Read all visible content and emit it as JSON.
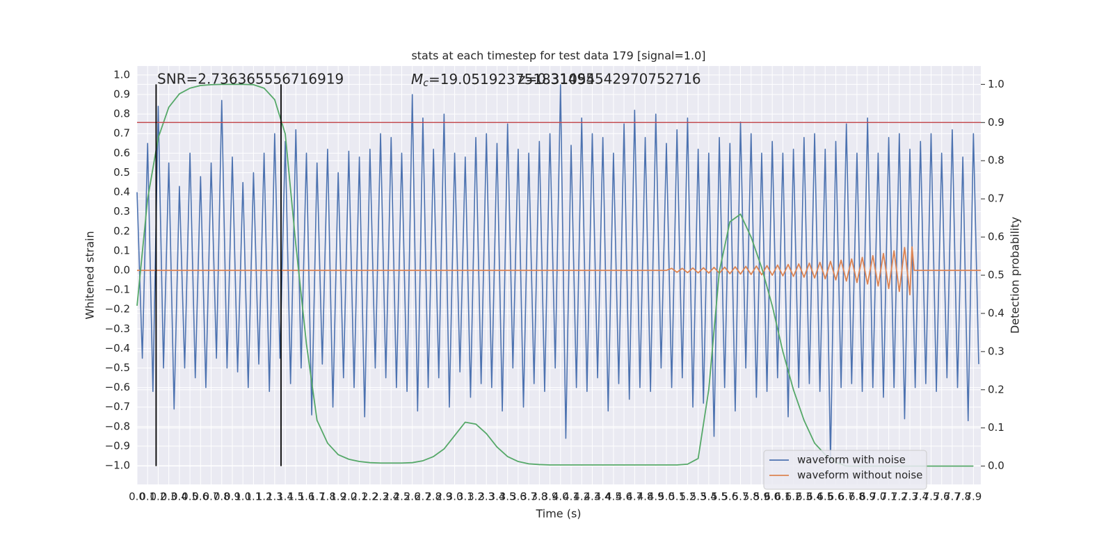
{
  "chart_data": {
    "type": "line",
    "title": "stats at each timestep for test data 179 [signal=1.0]",
    "xlabel": "Time (s)",
    "ylabel": "Whitened strain",
    "y2label": "Detection probability",
    "xlim": [
      0,
      7.97
    ],
    "ylim": [
      -1.096,
      1.046
    ],
    "y2lim": [
      -0.048,
      1.048
    ],
    "xticks": [
      {
        "value": 0,
        "label": "0.0"
      },
      0.1,
      0.2,
      0.3,
      0.4,
      0.5,
      0.6,
      0.7,
      0.8,
      0.9,
      {
        "value": 1,
        "label": "1.0"
      },
      1.1,
      1.2,
      1.3,
      1.4,
      1.5,
      1.6,
      1.7,
      1.8,
      1.9,
      {
        "value": 2,
        "label": "2.0"
      },
      2.1,
      2.2,
      2.3,
      2.4,
      2.5,
      2.6,
      2.7,
      2.8,
      2.9,
      {
        "value": 3,
        "label": "3.0"
      },
      3.1,
      3.2,
      3.3,
      3.4,
      3.5,
      3.6,
      3.7,
      3.8,
      3.9,
      {
        "value": 4,
        "label": "4.0"
      },
      4.1,
      4.2,
      4.3,
      4.4,
      4.5,
      4.6,
      4.7,
      4.8,
      4.9,
      {
        "value": 5,
        "label": "5.0"
      },
      5.1,
      5.2,
      5.3,
      5.4,
      5.5,
      5.6,
      5.7,
      5.8,
      5.9,
      {
        "value": 6,
        "label": "6.0"
      },
      6.1,
      6.2,
      6.3,
      6.4,
      6.5,
      6.6,
      6.7,
      6.8,
      6.9,
      {
        "value": 7,
        "label": "7.0"
      },
      7.1,
      7.2,
      7.3,
      7.4,
      7.5,
      7.6,
      7.7,
      7.8,
      7.9
    ],
    "yticks": [
      {
        "value": -1,
        "label": "−1.0"
      },
      {
        "value": -0.9,
        "label": "−0.9"
      },
      {
        "value": -0.8,
        "label": "−0.8"
      },
      {
        "value": -0.7,
        "label": "−0.7"
      },
      {
        "value": -0.6,
        "label": "−0.6"
      },
      {
        "value": -0.5,
        "label": "−0.5"
      },
      {
        "value": -0.4,
        "label": "−0.4"
      },
      {
        "value": -0.3,
        "label": "−0.3"
      },
      {
        "value": -0.2,
        "label": "−0.2"
      },
      {
        "value": -0.1,
        "label": "−0.1"
      },
      {
        "value": 0,
        "label": "0.0"
      },
      0.1,
      0.2,
      0.3,
      0.4,
      0.5,
      0.6,
      0.7,
      0.8,
      0.9,
      {
        "value": 1,
        "label": "1.0"
      }
    ],
    "y2ticks": [
      {
        "value": 0,
        "label": "0.0"
      },
      0.1,
      0.2,
      0.3,
      0.4,
      0.5,
      0.6,
      0.7,
      0.8,
      0.9,
      {
        "value": 1,
        "label": "1.0"
      }
    ],
    "grid": true,
    "legend": "lower right",
    "series": [
      {
        "name": "waveform with noise",
        "color": "#4c72b0",
        "x": [
          0,
          0.05,
          0.1,
          0.15,
          0.2,
          0.25,
          0.3,
          0.35,
          0.4,
          0.45,
          0.5,
          0.55,
          0.6,
          0.65,
          0.7,
          0.75,
          0.8,
          0.85,
          0.9,
          0.95,
          1,
          1.05,
          1.1,
          1.15,
          1.2,
          1.25,
          1.3,
          1.35,
          1.4,
          1.45,
          1.5,
          1.55,
          1.6,
          1.65,
          1.7,
          1.75,
          1.8,
          1.85,
          1.9,
          1.95,
          2,
          2.05,
          2.1,
          2.15,
          2.2,
          2.25,
          2.3,
          2.35,
          2.4,
          2.45,
          2.5,
          2.55,
          2.6,
          2.65,
          2.7,
          2.75,
          2.8,
          2.85,
          2.9,
          2.95,
          3,
          3.05,
          3.1,
          3.15,
          3.2,
          3.25,
          3.3,
          3.35,
          3.4,
          3.45,
          3.5,
          3.55,
          3.6,
          3.65,
          3.7,
          3.75,
          3.8,
          3.85,
          3.9,
          3.95,
          4,
          4.05,
          4.1,
          4.15,
          4.2,
          4.25,
          4.3,
          4.35,
          4.4,
          4.45,
          4.5,
          4.55,
          4.6,
          4.65,
          4.7,
          4.75,
          4.8,
          4.85,
          4.9,
          4.95,
          5,
          5.05,
          5.1,
          5.15,
          5.2,
          5.25,
          5.3,
          5.35,
          5.4,
          5.45,
          5.5,
          5.55,
          5.6,
          5.65,
          5.7,
          5.75,
          5.8,
          5.85,
          5.9,
          5.95,
          6,
          6.05,
          6.1,
          6.15,
          6.2,
          6.25,
          6.3,
          6.35,
          6.4,
          6.45,
          6.5,
          6.55,
          6.6,
          6.65,
          6.7,
          6.75,
          6.8,
          6.85,
          6.9,
          6.95,
          7,
          7.05,
          7.1,
          7.15,
          7.2,
          7.25,
          7.3,
          7.35,
          7.4,
          7.45,
          7.5,
          7.55,
          7.6,
          7.65,
          7.7,
          7.75,
          7.8,
          7.85,
          7.9,
          7.95
        ],
        "values": [
          0.4,
          -0.45,
          0.65,
          -0.62,
          0.84,
          -0.5,
          0.55,
          -0.71,
          0.43,
          -0.5,
          0.6,
          -0.55,
          0.48,
          -0.6,
          0.55,
          -0.45,
          0.87,
          -0.5,
          0.58,
          -0.52,
          0.45,
          -0.6,
          0.5,
          -0.48,
          0.6,
          -0.62,
          0.7,
          -0.45,
          0.66,
          -0.58,
          0.72,
          -0.5,
          0.6,
          -0.74,
          0.55,
          -0.48,
          0.62,
          -0.7,
          0.5,
          -0.55,
          0.61,
          -0.6,
          0.58,
          -0.75,
          0.62,
          -0.5,
          0.7,
          -0.55,
          0.68,
          -0.6,
          0.6,
          -0.62,
          0.9,
          -0.72,
          0.78,
          -0.6,
          0.62,
          -0.55,
          0.8,
          -0.7,
          0.6,
          -0.52,
          0.58,
          -0.65,
          0.68,
          -0.58,
          0.7,
          -0.6,
          0.65,
          -0.72,
          0.75,
          -0.5,
          0.62,
          -0.7,
          0.6,
          -0.58,
          0.66,
          -0.62,
          0.7,
          -0.5,
          0.95,
          -0.86,
          0.64,
          -0.6,
          0.78,
          -0.62,
          0.7,
          -0.55,
          0.68,
          -0.72,
          0.6,
          -0.58,
          0.75,
          -0.66,
          0.82,
          -0.6,
          0.68,
          -0.62,
          0.8,
          -0.5,
          0.65,
          -0.6,
          0.72,
          -0.55,
          0.78,
          -0.7,
          0.62,
          -0.68,
          0.6,
          -0.85,
          0.68,
          -0.6,
          0.65,
          -0.72,
          0.76,
          -0.5,
          0.7,
          -0.65,
          0.6,
          -0.62,
          0.66,
          -0.55,
          0.6,
          -0.75,
          0.62,
          -0.6,
          0.68,
          -0.58,
          0.7,
          -0.62,
          0.62,
          -0.98,
          0.66,
          -0.6,
          0.75,
          -0.58,
          0.6,
          -0.62,
          0.78,
          -0.6,
          0.6,
          -0.65,
          0.68,
          -0.6,
          0.7,
          -0.76,
          0.62,
          -0.6,
          0.66,
          -0.58,
          0.7,
          -0.62,
          0.6,
          -0.55,
          0.72,
          -0.6,
          0.58,
          -0.77,
          0.7,
          -0.48
        ]
      },
      {
        "name": "waveform without noise",
        "color": "#dd8452",
        "x": [
          0,
          5,
          5.05,
          5.1,
          5.15,
          5.2,
          5.25,
          5.3,
          5.35,
          5.4,
          5.45,
          5.5,
          5.55,
          5.6,
          5.65,
          5.7,
          5.75,
          5.8,
          5.85,
          5.9,
          5.95,
          6,
          6.05,
          6.1,
          6.15,
          6.2,
          6.25,
          6.3,
          6.35,
          6.4,
          6.45,
          6.5,
          6.55,
          6.6,
          6.65,
          6.7,
          6.75,
          6.8,
          6.85,
          6.9,
          6.95,
          7,
          7.05,
          7.1,
          7.15,
          7.2,
          7.25,
          7.3,
          7.32,
          7.34,
          7.97
        ],
        "values": [
          0,
          0,
          0.01,
          -0.01,
          0.01,
          -0.012,
          0.012,
          -0.013,
          0.013,
          -0.014,
          0.015,
          -0.015,
          0.016,
          -0.017,
          0.018,
          -0.019,
          0.02,
          -0.021,
          0.022,
          -0.023,
          0.024,
          -0.025,
          0.027,
          -0.028,
          0.03,
          -0.031,
          0.033,
          -0.035,
          0.037,
          -0.039,
          0.041,
          -0.043,
          0.046,
          -0.049,
          0.052,
          -0.055,
          0.058,
          -0.062,
          0.066,
          -0.07,
          0.075,
          -0.08,
          0.086,
          -0.093,
          0.1,
          -0.108,
          0.117,
          -0.125,
          0.12,
          0,
          0
        ]
      },
      {
        "color": "#55a868",
        "axis": "y2",
        "x": [
          0,
          0.1,
          0.2,
          0.3,
          0.4,
          0.5,
          0.6,
          0.7,
          0.8,
          0.9,
          1,
          1.1,
          1.2,
          1.3,
          1.4,
          1.5,
          1.6,
          1.7,
          1.8,
          1.9,
          2,
          2.1,
          2.2,
          2.3,
          2.4,
          2.5,
          2.6,
          2.7,
          2.8,
          2.9,
          3,
          3.1,
          3.2,
          3.3,
          3.4,
          3.5,
          3.6,
          3.7,
          3.8,
          3.9,
          4,
          4.1,
          4.2,
          4.3,
          4.4,
          4.5,
          4.6,
          4.7,
          4.8,
          4.9,
          5,
          5.1,
          5.2,
          5.3,
          5.4,
          5.5,
          5.6,
          5.7,
          5.8,
          5.9,
          6,
          6.1,
          6.2,
          6.3,
          6.4,
          6.5,
          6.6,
          6.7,
          6.8,
          6.9,
          7,
          7.1,
          7.2,
          7.3,
          7.4,
          7.5,
          7.6,
          7.7,
          7.8,
          7.9
        ],
        "values": [
          0.42,
          0.7,
          0.86,
          0.94,
          0.975,
          0.99,
          0.997,
          0.999,
          1,
          1,
          1,
          0.999,
          0.99,
          0.96,
          0.87,
          0.58,
          0.32,
          0.12,
          0.06,
          0.03,
          0.018,
          0.012,
          0.009,
          0.008,
          0.008,
          0.008,
          0.009,
          0.014,
          0.025,
          0.045,
          0.08,
          0.115,
          0.11,
          0.085,
          0.05,
          0.025,
          0.012,
          0.006,
          0.004,
          0.003,
          0.003,
          0.003,
          0.003,
          0.003,
          0.003,
          0.003,
          0.003,
          0.003,
          0.003,
          0.003,
          0.003,
          0.003,
          0.005,
          0.02,
          0.2,
          0.51,
          0.64,
          0.66,
          0.6,
          0.52,
          0.42,
          0.3,
          0.2,
          0.12,
          0.06,
          0.03,
          0.01,
          0,
          0,
          0,
          0,
          0,
          0,
          0,
          0,
          0,
          0,
          0,
          0,
          0
        ]
      }
    ],
    "hline": {
      "value": 0.9,
      "axis": "y2",
      "color": "#c44e52"
    },
    "vlines": {
      "x": [
        0.18,
        1.36
      ],
      "span": [
        0,
        1
      ],
      "axis": "y2",
      "color": "#000000"
    },
    "annotations": [
      {
        "text": "SNR=2.736365556716919"
      },
      {
        "symbol": "M",
        "subscript": "c",
        "text": "=19.051923751831054"
      },
      {
        "text": "z=0.31495542970752716"
      }
    ]
  }
}
